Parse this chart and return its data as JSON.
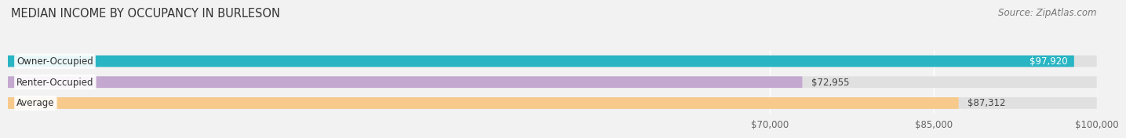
{
  "title": "MEDIAN INCOME BY OCCUPANCY IN BURLESON",
  "source": "Source: ZipAtlas.com",
  "categories": [
    "Owner-Occupied",
    "Renter-Occupied",
    "Average"
  ],
  "values": [
    97920,
    72955,
    87312
  ],
  "bar_colors": [
    "#29B5C3",
    "#C4A8D0",
    "#F7C98A"
  ],
  "value_labels": [
    "$97,920",
    "$72,955",
    "$87,312"
  ],
  "value_inside": [
    true,
    false,
    false
  ],
  "xlim": [
    0,
    100000
  ],
  "xticks": [
    70000,
    85000,
    100000
  ],
  "xtick_labels": [
    "$70,000",
    "$85,000",
    "$100,000"
  ],
  "bar_height": 0.55,
  "background_color": "#f2f2f2",
  "bar_bg_color": "#e0e0e0",
  "title_fontsize": 10.5,
  "source_fontsize": 8.5,
  "label_fontsize": 8.5,
  "value_fontsize": 8.5,
  "tick_fontsize": 8.5
}
